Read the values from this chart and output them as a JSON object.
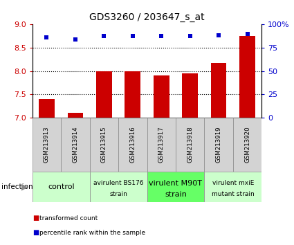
{
  "title": "GDS3260 / 203647_s_at",
  "samples": [
    "GSM213913",
    "GSM213914",
    "GSM213915",
    "GSM213916",
    "GSM213917",
    "GSM213918",
    "GSM213919",
    "GSM213920"
  ],
  "bar_values": [
    7.4,
    7.1,
    8.0,
    8.0,
    7.9,
    7.95,
    8.18,
    8.75
  ],
  "dot_values": [
    86,
    84,
    88,
    88,
    88,
    88,
    88.5,
    90
  ],
  "ylim_left": [
    7.0,
    9.0
  ],
  "ylim_right": [
    0,
    100
  ],
  "yticks_left": [
    7.0,
    7.5,
    8.0,
    8.5,
    9.0
  ],
  "yticks_right": [
    0,
    25,
    50,
    75,
    100
  ],
  "bar_color": "#cc0000",
  "dot_color": "#0000cc",
  "bar_width": 0.55,
  "groups": [
    {
      "label": "control",
      "samples": [
        0,
        1
      ],
      "color": "#ccffcc",
      "fontsize_main": 8,
      "fontsize_sub": 8,
      "bold_main": false
    },
    {
      "label": "avirulent BS176",
      "label2": "strain",
      "samples": [
        2,
        3
      ],
      "color": "#ccffcc",
      "fontsize_main": 6.5,
      "fontsize_sub": 6.5,
      "bold_main": false
    },
    {
      "label": "virulent M90T",
      "label2": "strain",
      "samples": [
        4,
        5
      ],
      "color": "#66ff66",
      "fontsize_main": 8,
      "fontsize_sub": 8,
      "bold_main": false
    },
    {
      "label": "virulent mxiE",
      "label2": "mutant strain",
      "samples": [
        6,
        7
      ],
      "color": "#ccffcc",
      "fontsize_main": 6.5,
      "fontsize_sub": 6.5,
      "bold_main": false
    }
  ],
  "infection_label": "infection",
  "legend_items": [
    {
      "color": "#cc0000",
      "label": "transformed count"
    },
    {
      "color": "#0000cc",
      "label": "percentile rank within the sample"
    }
  ],
  "tick_color_left": "#cc0000",
  "tick_color_right": "#0000cc",
  "gray_cell": "#d3d3d3",
  "cell_border": "#888888"
}
